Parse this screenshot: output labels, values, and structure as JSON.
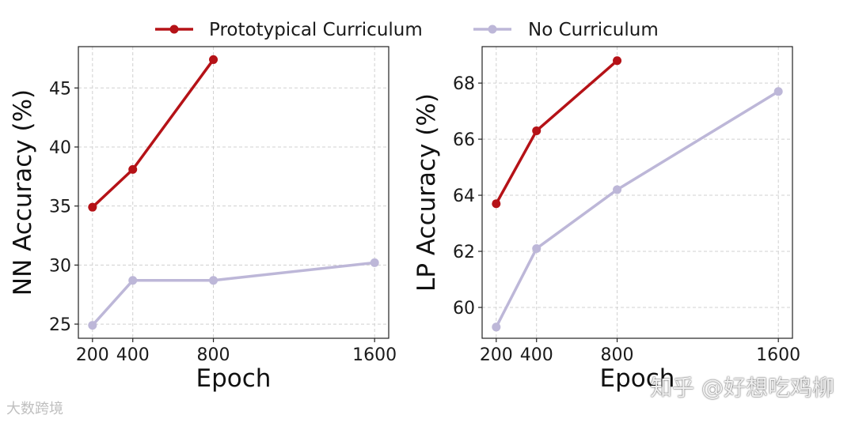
{
  "legend": {
    "position": "top-center",
    "items": [
      {
        "label": "Prototypical Curriculum",
        "color": "#b51217"
      },
      {
        "label": "No Curriculum",
        "color": "#bdb7d8"
      }
    ]
  },
  "watermarks": {
    "left": "大数跨境",
    "right": "知乎 @好想吃鸡柳"
  },
  "chart_data": [
    {
      "type": "line",
      "xlabel": "Epoch",
      "ylabel": "NN Accuracy (%)",
      "x": [
        200,
        400,
        800,
        1600
      ],
      "xticks": [
        "200",
        "400",
        "800",
        "1600"
      ],
      "xlim": [
        130,
        1670
      ],
      "ylim": [
        23.8,
        48.5
      ],
      "yticks": [
        25,
        30,
        35,
        40,
        45
      ],
      "grid": true,
      "series": [
        {
          "name": "Prototypical Curriculum",
          "color": "#b51217",
          "x": [
            200,
            400,
            800
          ],
          "values": [
            34.9,
            38.1,
            47.4
          ]
        },
        {
          "name": "No Curriculum",
          "color": "#bdb7d8",
          "x": [
            200,
            400,
            800,
            1600
          ],
          "values": [
            24.9,
            28.7,
            28.7,
            30.2
          ]
        }
      ]
    },
    {
      "type": "line",
      "xlabel": "Epoch",
      "ylabel": "LP Accuracy (%)",
      "x": [
        200,
        400,
        800,
        1600
      ],
      "xticks": [
        "200",
        "400",
        "800",
        "1600"
      ],
      "xlim": [
        130,
        1670
      ],
      "ylim": [
        58.9,
        69.3
      ],
      "yticks": [
        60,
        62,
        64,
        66,
        68
      ],
      "grid": true,
      "series": [
        {
          "name": "Prototypical Curriculum",
          "color": "#b51217",
          "x": [
            200,
            400,
            800
          ],
          "values": [
            63.7,
            66.3,
            68.8
          ]
        },
        {
          "name": "No Curriculum",
          "color": "#bdb7d8",
          "x": [
            200,
            400,
            800,
            1600
          ],
          "values": [
            59.3,
            62.1,
            64.2,
            67.7
          ]
        }
      ]
    }
  ]
}
